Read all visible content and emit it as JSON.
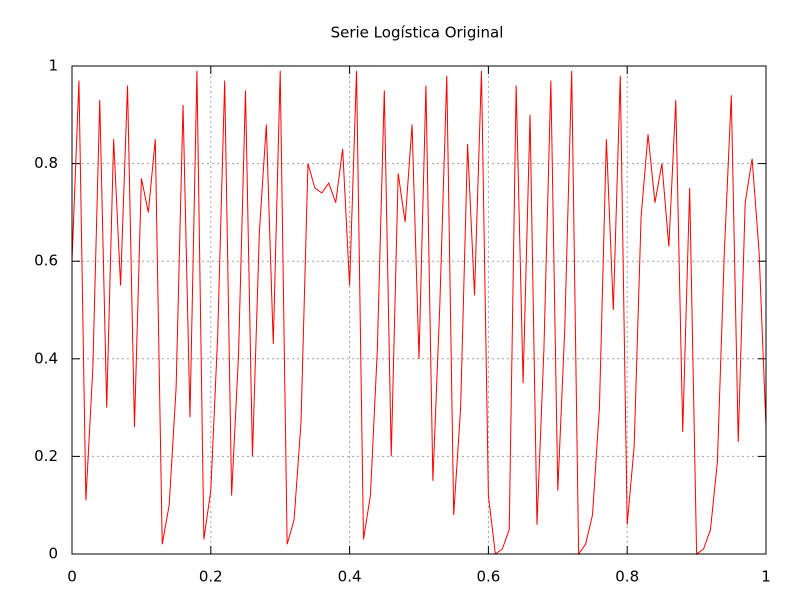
{
  "chart_data": {
    "type": "line",
    "title": "Serie Logística Original",
    "x": [
      0,
      0.01,
      0.02,
      0.03,
      0.04,
      0.05,
      0.06,
      0.07,
      0.08,
      0.09,
      0.1,
      0.11,
      0.12,
      0.13,
      0.14,
      0.15,
      0.16,
      0.17,
      0.18,
      0.19,
      0.2,
      0.21,
      0.22,
      0.23,
      0.24,
      0.25,
      0.26,
      0.27,
      0.28,
      0.29,
      0.3,
      0.31,
      0.32,
      0.33,
      0.34,
      0.35,
      0.36,
      0.37,
      0.38,
      0.39,
      0.4,
      0.41,
      0.42,
      0.43,
      0.44,
      0.45,
      0.46,
      0.47,
      0.48,
      0.49,
      0.5,
      0.51,
      0.52,
      0.53,
      0.54,
      0.55,
      0.56,
      0.57,
      0.58,
      0.59,
      0.6,
      0.61,
      0.62,
      0.63,
      0.64,
      0.65,
      0.66,
      0.67,
      0.68,
      0.69,
      0.7,
      0.71,
      0.72,
      0.73,
      0.74,
      0.75,
      0.76,
      0.77,
      0.78,
      0.79,
      0.8,
      0.81,
      0.82,
      0.83,
      0.84,
      0.85,
      0.86,
      0.87,
      0.88,
      0.89,
      0.9,
      0.91,
      0.92,
      0.93,
      0.94,
      0.95,
      0.96,
      0.97,
      0.98,
      0.99,
      1
    ],
    "series": [
      {
        "color": "#ff0000",
        "values": [
          0.6,
          0.97,
          0.11,
          0.38,
          0.93,
          0.3,
          0.85,
          0.55,
          0.96,
          0.26,
          0.77,
          0.7,
          0.85,
          0.02,
          0.1,
          0.34,
          0.92,
          0.28,
          0.99,
          0.03,
          0.13,
          0.45,
          0.97,
          0.12,
          0.41,
          0.95,
          0.2,
          0.66,
          0.88,
          0.43,
          0.99,
          0.02,
          0.07,
          0.27,
          0.8,
          0.75,
          0.74,
          0.76,
          0.72,
          0.83,
          0.55,
          0.99,
          0.03,
          0.12,
          0.42,
          0.95,
          0.2,
          0.78,
          0.68,
          0.88,
          0.4,
          0.96,
          0.15,
          0.51,
          0.98,
          0.08,
          0.3,
          0.84,
          0.53,
          0.99,
          0.12,
          0.0,
          0.01,
          0.05,
          0.96,
          0.35,
          0.9,
          0.06,
          0.42,
          0.97,
          0.13,
          0.46,
          0.99,
          0.0,
          0.02,
          0.08,
          0.3,
          0.85,
          0.5,
          0.98,
          0.06,
          0.22,
          0.69,
          0.86,
          0.72,
          0.8,
          0.63,
          0.93,
          0.25,
          0.75,
          0.0,
          0.01,
          0.05,
          0.19,
          0.62,
          0.94,
          0.23,
          0.72,
          0.81,
          0.62,
          0.26
        ]
      }
    ],
    "xlim": [
      0,
      1
    ],
    "xticks": [
      0,
      0.2,
      0.4,
      0.6,
      0.8,
      1
    ],
    "ylim": [
      0,
      1
    ],
    "yticks": [
      0,
      0.2,
      0.4,
      0.6,
      0.8,
      1
    ],
    "grid": true
  }
}
